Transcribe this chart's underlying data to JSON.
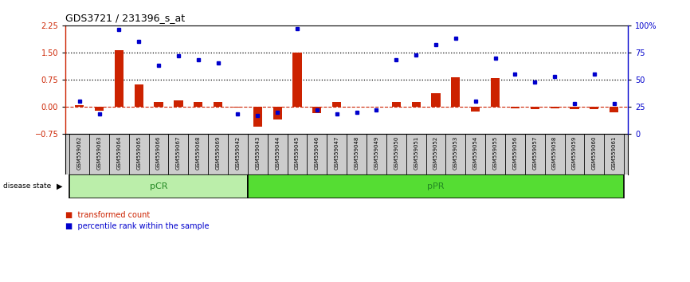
{
  "title": "GDS3721 / 231396_s_at",
  "samples": [
    "GSM559062",
    "GSM559063",
    "GSM559064",
    "GSM559065",
    "GSM559066",
    "GSM559067",
    "GSM559068",
    "GSM559069",
    "GSM559042",
    "GSM559043",
    "GSM559044",
    "GSM559045",
    "GSM559046",
    "GSM559047",
    "GSM559048",
    "GSM559049",
    "GSM559050",
    "GSM559051",
    "GSM559052",
    "GSM559053",
    "GSM559054",
    "GSM559055",
    "GSM559056",
    "GSM559057",
    "GSM559058",
    "GSM559059",
    "GSM559060",
    "GSM559061"
  ],
  "transformed_count": [
    0.05,
    -0.12,
    1.57,
    0.62,
    0.12,
    0.17,
    0.12,
    0.13,
    -0.02,
    -0.55,
    -0.35,
    1.5,
    -0.17,
    0.13,
    -0.01,
    -0.01,
    0.12,
    0.12,
    0.38,
    0.82,
    -0.14,
    0.78,
    -0.05,
    -0.08,
    -0.05,
    -0.08,
    -0.08,
    -0.15
  ],
  "percentile_rank": [
    30,
    18,
    96,
    85,
    63,
    72,
    68,
    65,
    18,
    17,
    20,
    97,
    22,
    18,
    20,
    22,
    68,
    73,
    82,
    88,
    30,
    70,
    55,
    48,
    53,
    28,
    55,
    28
  ],
  "pCR_count": 9,
  "pPR_count": 19,
  "ylim_left": [
    -0.75,
    2.25
  ],
  "ylim_right": [
    0,
    100
  ],
  "yticks_left": [
    -0.75,
    0.0,
    0.75,
    1.5,
    2.25
  ],
  "yticks_right": [
    0,
    25,
    50,
    75,
    100
  ],
  "bar_color": "#cc2200",
  "dot_color": "#0000cc",
  "pCR_color": "#bbeeaa",
  "pPR_color": "#55dd33",
  "label_color_pCR": "#228822",
  "label_color_pPR": "#228822",
  "dotted_lines": [
    0.75,
    1.5
  ],
  "legend_tc": "transformed count",
  "legend_pr": "percentile rank within the sample",
  "label_bg": "#cccccc",
  "label_border": "#888888"
}
